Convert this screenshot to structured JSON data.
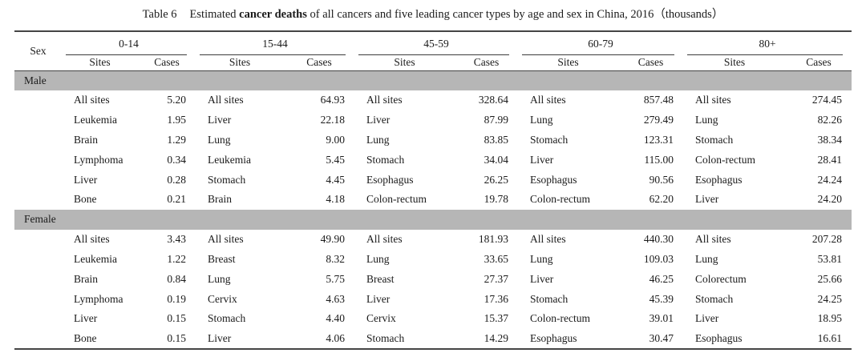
{
  "title": {
    "label": "Table 6",
    "part1": "Estimated ",
    "bold": "cancer deaths",
    "part2": " of all cancers and five leading cancer types by age and sex in China, 2016（thousands）"
  },
  "header": {
    "sex_label": "Sex",
    "age_groups": [
      "0-14",
      "15-44",
      "45-59",
      "60-79",
      "80+"
    ],
    "sites_label": "Sites",
    "cases_label": "Cases"
  },
  "sections": [
    {
      "sex": "Male",
      "rows": [
        {
          "cells": [
            {
              "site": "All sites",
              "cases": "5.20"
            },
            {
              "site": "All sites",
              "cases": "64.93"
            },
            {
              "site": "All sites",
              "cases": "328.64"
            },
            {
              "site": "All sites",
              "cases": "857.48"
            },
            {
              "site": "All sites",
              "cases": "274.45"
            }
          ]
        },
        {
          "cells": [
            {
              "site": "Leukemia",
              "cases": "1.95"
            },
            {
              "site": "Liver",
              "cases": "22.18"
            },
            {
              "site": "Liver",
              "cases": "87.99"
            },
            {
              "site": "Lung",
              "cases": "279.49"
            },
            {
              "site": "Lung",
              "cases": "82.26"
            }
          ]
        },
        {
          "cells": [
            {
              "site": "Brain",
              "cases": "1.29"
            },
            {
              "site": "Lung",
              "cases": "9.00"
            },
            {
              "site": "Lung",
              "cases": "83.85"
            },
            {
              "site": "Stomach",
              "cases": "123.31"
            },
            {
              "site": "Stomach",
              "cases": "38.34"
            }
          ]
        },
        {
          "cells": [
            {
              "site": "Lymphoma",
              "cases": "0.34"
            },
            {
              "site": "Leukemia",
              "cases": "5.45"
            },
            {
              "site": "Stomach",
              "cases": "34.04"
            },
            {
              "site": "Liver",
              "cases": "115.00"
            },
            {
              "site": "Colon-rectum",
              "cases": "28.41"
            }
          ]
        },
        {
          "cells": [
            {
              "site": "Liver",
              "cases": "0.28"
            },
            {
              "site": "Stomach",
              "cases": "4.45"
            },
            {
              "site": "Esophagus",
              "cases": "26.25"
            },
            {
              "site": "Esophagus",
              "cases": "90.56"
            },
            {
              "site": "Esophagus",
              "cases": "24.24"
            }
          ]
        },
        {
          "cells": [
            {
              "site": "Bone",
              "cases": "0.21"
            },
            {
              "site": "Brain",
              "cases": "4.18"
            },
            {
              "site": "Colon-rectum",
              "cases": "19.78"
            },
            {
              "site": "Colon-rectum",
              "cases": "62.20"
            },
            {
              "site": "Liver",
              "cases": "24.20"
            }
          ]
        }
      ]
    },
    {
      "sex": "Female",
      "rows": [
        {
          "cells": [
            {
              "site": "All sites",
              "cases": "3.43"
            },
            {
              "site": "All sites",
              "cases": "49.90"
            },
            {
              "site": "All sites",
              "cases": "181.93"
            },
            {
              "site": "All sites",
              "cases": "440.30"
            },
            {
              "site": "All sites",
              "cases": "207.28"
            }
          ]
        },
        {
          "cells": [
            {
              "site": "Leukemia",
              "cases": "1.22"
            },
            {
              "site": "Breast",
              "cases": "8.32"
            },
            {
              "site": "Lung",
              "cases": "33.65"
            },
            {
              "site": "Lung",
              "cases": "109.03"
            },
            {
              "site": "Lung",
              "cases": "53.81"
            }
          ]
        },
        {
          "cells": [
            {
              "site": "Brain",
              "cases": "0.84"
            },
            {
              "site": "Lung",
              "cases": "5.75"
            },
            {
              "site": "Breast",
              "cases": "27.37"
            },
            {
              "site": "Liver",
              "cases": "46.25"
            },
            {
              "site": "Colorectum",
              "cases": "25.66"
            }
          ]
        },
        {
          "cells": [
            {
              "site": "Lymphoma",
              "cases": "0.19"
            },
            {
              "site": "Cervix",
              "cases": "4.63"
            },
            {
              "site": "Liver",
              "cases": "17.36"
            },
            {
              "site": "Stomach",
              "cases": "45.39"
            },
            {
              "site": "Stomach",
              "cases": "24.25"
            }
          ]
        },
        {
          "cells": [
            {
              "site": "Liver",
              "cases": "0.15"
            },
            {
              "site": "Stomach",
              "cases": "4.40"
            },
            {
              "site": "Cervix",
              "cases": "15.37"
            },
            {
              "site": "Colon-rectum",
              "cases": "39.01"
            },
            {
              "site": "Liver",
              "cases": "18.95"
            }
          ]
        },
        {
          "cells": [
            {
              "site": "Bone",
              "cases": "0.15"
            },
            {
              "site": "Liver",
              "cases": "4.06"
            },
            {
              "site": "Stomach",
              "cases": "14.29"
            },
            {
              "site": "Esophagus",
              "cases": "30.47"
            },
            {
              "site": "Esophagus",
              "cases": "16.61"
            }
          ]
        }
      ]
    }
  ],
  "colors": {
    "band": "#b6b6b6",
    "rule": "#454545",
    "text": "#1b1b1b"
  }
}
